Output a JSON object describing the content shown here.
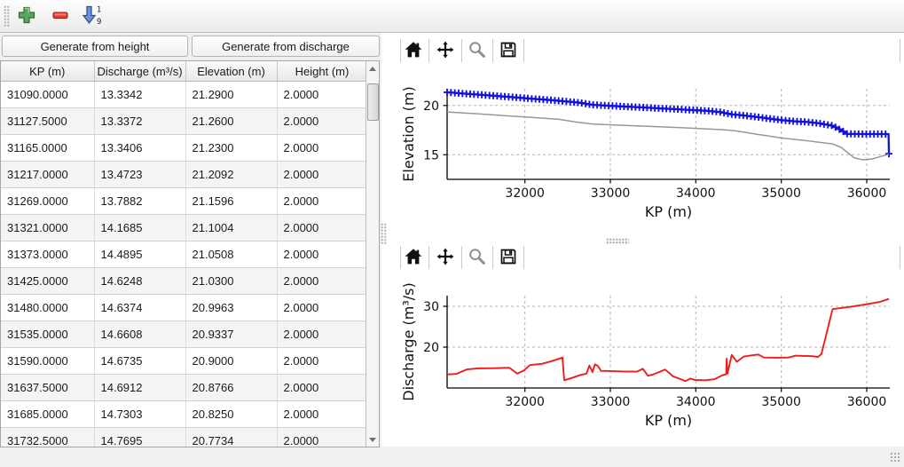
{
  "colors": {
    "elevation_line": "#1212dd",
    "ground_line": "#979797",
    "discharge_line": "#ee1c1c",
    "grid": "#b3b3b3"
  },
  "main_toolbar": {
    "add_icon": "plus",
    "remove_icon": "minus",
    "sort_icon": "sort-ascending",
    "sort_digit_top": "1",
    "sort_digit_bottom": "9"
  },
  "buttons": {
    "generate_height": "Generate from height",
    "generate_discharge": "Generate from discharge"
  },
  "table": {
    "columns": [
      "KP (m)",
      "Discharge (m³/s)",
      "Elevation (m)",
      "Height (m)"
    ],
    "rows": [
      [
        "31090.0000",
        "13.3342",
        "21.2900",
        "2.0000"
      ],
      [
        "31127.5000",
        "13.3372",
        "21.2600",
        "2.0000"
      ],
      [
        "31165.0000",
        "13.3406",
        "21.2300",
        "2.0000"
      ],
      [
        "31217.0000",
        "13.4723",
        "21.2092",
        "2.0000"
      ],
      [
        "31269.0000",
        "13.7882",
        "21.1596",
        "2.0000"
      ],
      [
        "31321.0000",
        "14.1685",
        "21.1004",
        "2.0000"
      ],
      [
        "31373.0000",
        "14.4895",
        "21.0508",
        "2.0000"
      ],
      [
        "31425.0000",
        "14.6248",
        "21.0300",
        "2.0000"
      ],
      [
        "31480.0000",
        "14.6374",
        "20.9963",
        "2.0000"
      ],
      [
        "31535.0000",
        "14.6608",
        "20.9337",
        "2.0000"
      ],
      [
        "31590.0000",
        "14.6735",
        "20.9000",
        "2.0000"
      ],
      [
        "31637.5000",
        "14.6912",
        "20.8766",
        "2.0000"
      ],
      [
        "31685.0000",
        "14.7303",
        "20.8250",
        "2.0000"
      ],
      [
        "31732.5000",
        "14.7695",
        "20.7734",
        "2.0000"
      ]
    ]
  },
  "mpl_toolbar": {
    "icons": [
      "home",
      "pan",
      "zoom",
      "save"
    ]
  },
  "chart_data": [
    {
      "type": "line",
      "xlabel": "KP (m)",
      "ylabel": "Elevation (m)",
      "xlim": [
        31090,
        36270
      ],
      "ylim": [
        12.5,
        21.7
      ],
      "xticks": [
        32000,
        33000,
        34000,
        35000,
        36000
      ],
      "yticks": [
        15,
        20
      ],
      "grid": true,
      "series": [
        {
          "name": "elevation",
          "color": "#1212dd",
          "width": 2.3,
          "marker": "+",
          "marker_spacing": 45,
          "points": [
            [
              31090,
              21.35
            ],
            [
              31300,
              21.2
            ],
            [
              31500,
              21.08
            ],
            [
              31700,
              20.95
            ],
            [
              31900,
              20.82
            ],
            [
              32100,
              20.68
            ],
            [
              32300,
              20.55
            ],
            [
              32500,
              20.4
            ],
            [
              32650,
              20.28
            ],
            [
              32780,
              20.08
            ],
            [
              32900,
              20.02
            ],
            [
              33000,
              19.97
            ],
            [
              33200,
              19.88
            ],
            [
              33400,
              19.8
            ],
            [
              33600,
              19.7
            ],
            [
              33800,
              19.62
            ],
            [
              34000,
              19.52
            ],
            [
              34150,
              19.45
            ],
            [
              34300,
              19.32
            ],
            [
              34400,
              19.12
            ],
            [
              34550,
              19.0
            ],
            [
              34700,
              18.85
            ],
            [
              34850,
              18.68
            ],
            [
              35000,
              18.52
            ],
            [
              35150,
              18.4
            ],
            [
              35300,
              18.33
            ],
            [
              35450,
              18.18
            ],
            [
              35600,
              17.95
            ],
            [
              35700,
              17.5
            ],
            [
              35770,
              17.12
            ],
            [
              36000,
              17.1
            ],
            [
              36255,
              17.1
            ],
            [
              36260,
              15.1
            ]
          ]
        },
        {
          "name": "ground",
          "color": "#979797",
          "width": 1.5,
          "points": [
            [
              31090,
              19.35
            ],
            [
              31400,
              19.18
            ],
            [
              31800,
              18.95
            ],
            [
              32100,
              18.78
            ],
            [
              32400,
              18.6
            ],
            [
              32600,
              18.32
            ],
            [
              32800,
              18.12
            ],
            [
              33100,
              18.0
            ],
            [
              33400,
              17.9
            ],
            [
              33700,
              17.8
            ],
            [
              34000,
              17.68
            ],
            [
              34300,
              17.55
            ],
            [
              34450,
              17.45
            ],
            [
              34700,
              17.1
            ],
            [
              35000,
              16.7
            ],
            [
              35300,
              16.42
            ],
            [
              35600,
              16.1
            ],
            [
              35700,
              15.75
            ],
            [
              35850,
              14.7
            ],
            [
              35950,
              14.48
            ],
            [
              36050,
              14.55
            ],
            [
              36260,
              15.05
            ]
          ]
        }
      ]
    },
    {
      "type": "line",
      "xlabel": "KP (m)",
      "ylabel": "Discharge (m³/s)",
      "xlim": [
        31090,
        36270
      ],
      "ylim": [
        10,
        32.6
      ],
      "xticks": [
        32000,
        33000,
        34000,
        35000,
        36000
      ],
      "yticks": [
        20,
        30
      ],
      "grid": true,
      "series": [
        {
          "name": "discharge",
          "color": "#ee1c1c",
          "width": 1.9,
          "points": [
            [
              31090,
              13.3
            ],
            [
              31200,
              13.45
            ],
            [
              31320,
              14.55
            ],
            [
              31450,
              14.8
            ],
            [
              31650,
              14.85
            ],
            [
              31820,
              14.95
            ],
            [
              31910,
              13.5
            ],
            [
              31990,
              14.3
            ],
            [
              32060,
              15.6
            ],
            [
              32200,
              15.9
            ],
            [
              32350,
              16.8
            ],
            [
              32440,
              17.45
            ],
            [
              32460,
              11.9
            ],
            [
              32550,
              12.45
            ],
            [
              32650,
              13.2
            ],
            [
              32720,
              13.5
            ],
            [
              32755,
              15.5
            ],
            [
              32790,
              13.9
            ],
            [
              32820,
              15.8
            ],
            [
              32855,
              15.4
            ],
            [
              32890,
              14.2
            ],
            [
              33000,
              14.15
            ],
            [
              33150,
              14.05
            ],
            [
              33310,
              14.0
            ],
            [
              33380,
              14.7
            ],
            [
              33440,
              13.0
            ],
            [
              33500,
              13.3
            ],
            [
              33570,
              13.9
            ],
            [
              33640,
              14.5
            ],
            [
              33700,
              13.5
            ],
            [
              33730,
              12.9
            ],
            [
              33810,
              12.25
            ],
            [
              33880,
              11.7
            ],
            [
              33935,
              12.3
            ],
            [
              33995,
              11.95
            ],
            [
              34110,
              11.9
            ],
            [
              34220,
              12.15
            ],
            [
              34310,
              13.1
            ],
            [
              34355,
              13.35
            ],
            [
              34362,
              17.2
            ],
            [
              34370,
              13.5
            ],
            [
              34420,
              18.1
            ],
            [
              34480,
              16.4
            ],
            [
              34560,
              17.7
            ],
            [
              34660,
              18.0
            ],
            [
              34730,
              18.2
            ],
            [
              34800,
              17.45
            ],
            [
              34950,
              17.4
            ],
            [
              35080,
              17.45
            ],
            [
              35170,
              17.9
            ],
            [
              35260,
              17.85
            ],
            [
              35350,
              17.8
            ],
            [
              35430,
              17.6
            ],
            [
              35470,
              18.3
            ],
            [
              35600,
              29.3
            ],
            [
              35800,
              29.85
            ],
            [
              36000,
              30.5
            ],
            [
              36150,
              31.05
            ],
            [
              36260,
              31.8
            ]
          ]
        }
      ]
    }
  ]
}
